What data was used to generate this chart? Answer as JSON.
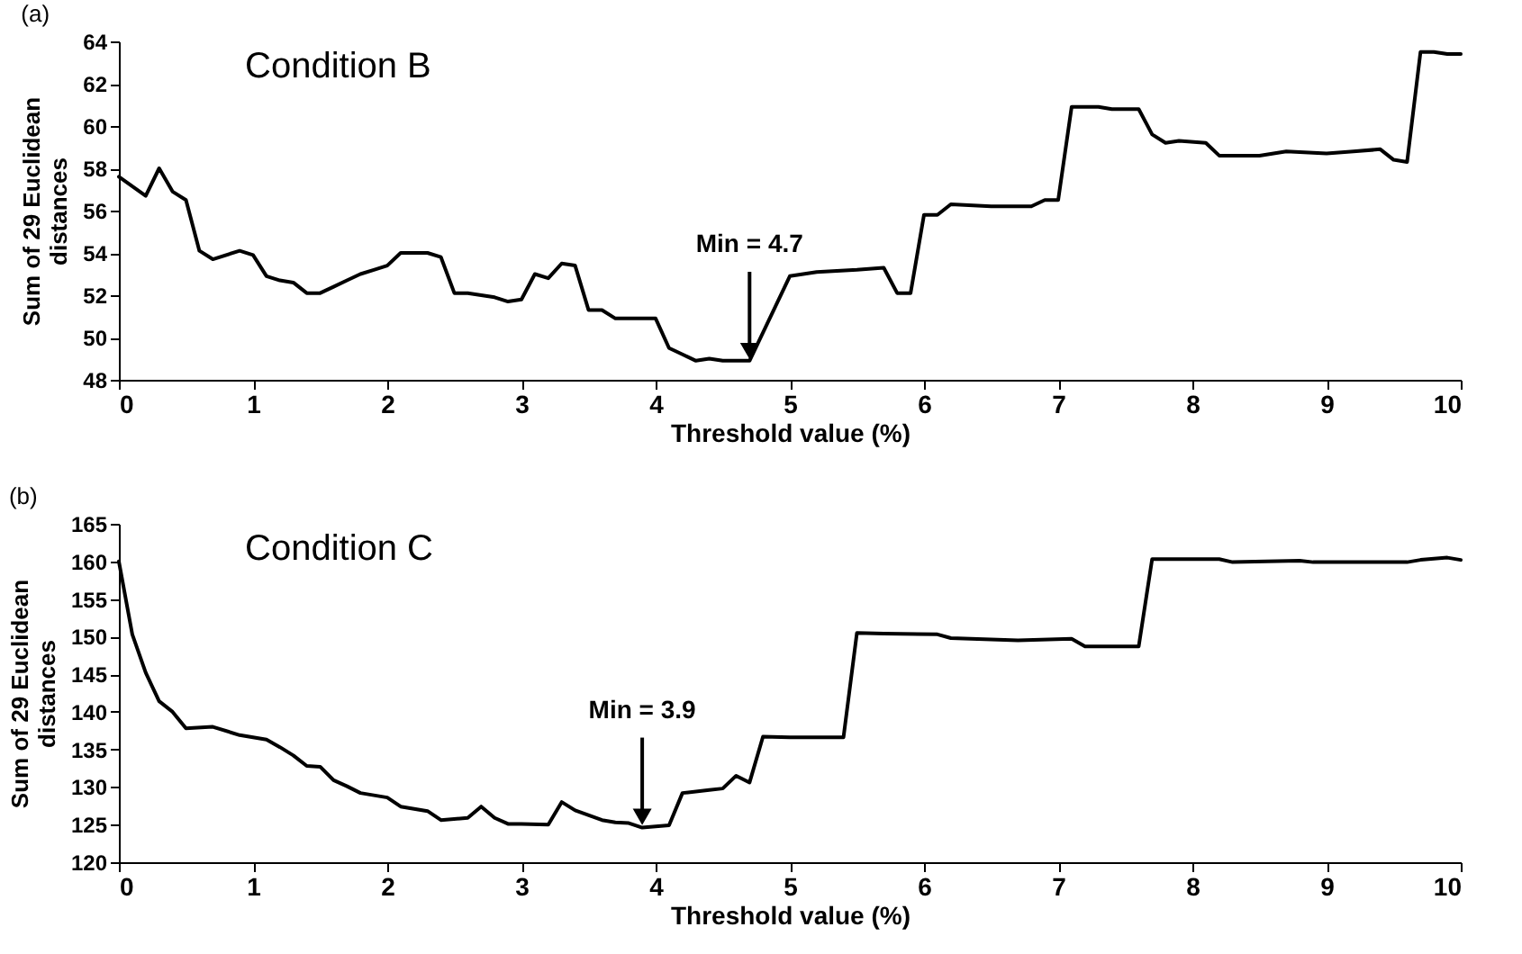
{
  "chart_data": [
    {
      "type": "line",
      "title": "(a)",
      "xlabel": "Threshold value (%)",
      "ylabel": "Sum of 29 Euclidean distances",
      "annotations": [
        "Condition B",
        {
          "text": "Min = 4.7",
          "x": 4.7,
          "y": 48.85
        }
      ],
      "x": [
        0,
        0.2,
        0.3,
        0.4,
        0.5,
        0.6,
        0.7,
        0.9,
        1.0,
        1.1,
        1.2,
        1.3,
        1.4,
        1.5,
        1.6,
        1.7,
        1.8,
        1.9,
        2.0,
        2.1,
        2.3,
        2.4,
        2.5,
        2.6,
        2.7,
        2.8,
        2.9,
        3.0,
        3.1,
        3.2,
        3.3,
        3.4,
        3.5,
        3.6,
        3.7,
        3.9,
        4.0,
        4.1,
        4.2,
        4.3,
        4.4,
        4.5,
        4.7,
        5.0,
        5.2,
        5.5,
        5.7,
        5.8,
        5.9,
        6.0,
        6.1,
        6.2,
        6.5,
        6.8,
        6.9,
        7.0,
        7.1,
        7.3,
        7.4,
        7.6,
        7.7,
        7.8,
        7.9,
        8.1,
        8.2,
        8.5,
        8.7,
        9.0,
        9.2,
        9.4,
        9.5,
        9.6,
        9.7,
        9.8,
        9.9,
        10.0
      ],
      "series": [
        {
          "color": "#000000",
          "values": [
            57.6,
            56.7,
            58.0,
            56.9,
            56.5,
            54.1,
            53.7,
            54.1,
            53.9,
            52.9,
            52.7,
            52.6,
            52.1,
            52.1,
            52.4,
            52.7,
            53.0,
            53.2,
            53.4,
            54.0,
            54.0,
            53.8,
            52.1,
            52.1,
            52.0,
            51.9,
            51.7,
            51.8,
            53.0,
            52.8,
            53.5,
            53.4,
            51.3,
            51.3,
            50.9,
            50.9,
            50.9,
            49.5,
            49.2,
            48.9,
            49.0,
            48.9,
            48.9,
            52.9,
            53.1,
            53.2,
            53.3,
            52.1,
            52.1,
            55.8,
            55.8,
            56.3,
            56.2,
            56.2,
            56.5,
            56.5,
            60.9,
            60.9,
            60.8,
            60.8,
            59.6,
            59.2,
            59.3,
            59.2,
            58.6,
            58.6,
            58.8,
            58.7,
            58.8,
            58.9,
            58.4,
            58.3,
            63.5,
            63.5,
            63.4,
            63.4
          ]
        }
      ],
      "xlim": [
        0,
        10
      ],
      "xticks": [
        0,
        1,
        2,
        3,
        4,
        5,
        6,
        7,
        8,
        9,
        10
      ],
      "ylim": [
        48,
        64
      ],
      "yticks": [
        48,
        50,
        52,
        54,
        56,
        58,
        60,
        62,
        64
      ],
      "marker": "none",
      "line_style": "solid"
    },
    {
      "type": "line",
      "title": "(b)",
      "xlabel": "Threshold value (%)",
      "ylabel": "Sum of 29 Euclidean distances",
      "annotations": [
        "Condition C",
        {
          "text": "Min = 3.9",
          "x": 3.9,
          "y": 124.6
        }
      ],
      "x": [
        0,
        0.1,
        0.2,
        0.3,
        0.4,
        0.5,
        0.7,
        0.9,
        1.1,
        1.2,
        1.3,
        1.4,
        1.5,
        1.6,
        1.7,
        1.8,
        2.0,
        2.1,
        2.3,
        2.4,
        2.6,
        2.7,
        2.8,
        2.9,
        3.0,
        3.2,
        3.3,
        3.4,
        3.6,
        3.7,
        3.8,
        3.9,
        4.1,
        4.2,
        4.4,
        4.5,
        4.6,
        4.7,
        4.8,
        5.0,
        5.4,
        5.5,
        5.7,
        6.1,
        6.2,
        6.7,
        7.1,
        7.2,
        7.6,
        7.7,
        8.2,
        8.3,
        8.8,
        8.9,
        9.6,
        9.7,
        9.9,
        10.0
      ],
      "series": [
        {
          "color": "#000000",
          "values": [
            160.0,
            150.3,
            145.2,
            141.4,
            140.0,
            137.8,
            138.0,
            136.9,
            136.3,
            135.3,
            134.2,
            132.8,
            132.7,
            130.9,
            130.1,
            129.2,
            128.6,
            127.4,
            126.8,
            125.6,
            125.9,
            127.4,
            125.9,
            125.1,
            125.1,
            125.0,
            128.0,
            126.9,
            125.6,
            125.3,
            125.2,
            124.6,
            124.9,
            129.2,
            129.6,
            129.8,
            131.5,
            130.6,
            136.7,
            136.6,
            136.6,
            150.5,
            150.4,
            150.3,
            149.8,
            149.5,
            149.7,
            148.7,
            148.7,
            160.3,
            160.3,
            159.9,
            160.1,
            159.9,
            159.9,
            160.2,
            160.5,
            160.2
          ]
        }
      ],
      "xlim": [
        0,
        10
      ],
      "xticks": [
        0,
        1,
        2,
        3,
        4,
        5,
        6,
        7,
        8,
        9,
        10
      ],
      "ylim": [
        120,
        165
      ],
      "yticks": [
        120,
        125,
        130,
        135,
        140,
        145,
        150,
        155,
        160,
        165
      ],
      "marker": "none",
      "line_style": "solid"
    }
  ]
}
